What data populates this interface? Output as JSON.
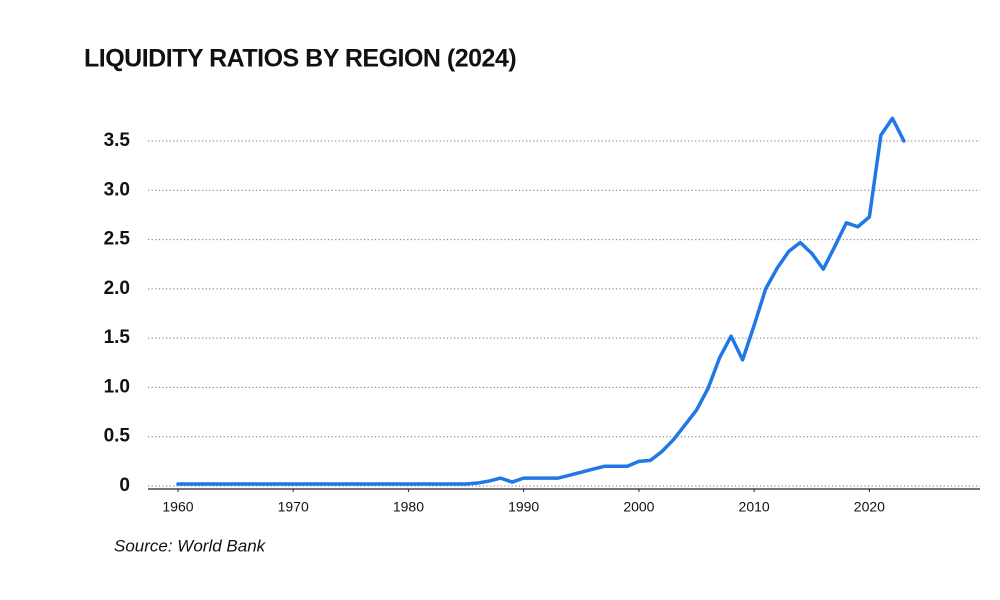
{
  "chart_data": {
    "type": "line",
    "title": "LIQUIDITY RATIOS BY REGION (2024)",
    "source": "Source: World Bank",
    "x": [
      1960,
      1961,
      1962,
      1963,
      1964,
      1965,
      1966,
      1967,
      1968,
      1969,
      1970,
      1971,
      1972,
      1973,
      1974,
      1975,
      1976,
      1977,
      1978,
      1979,
      1980,
      1981,
      1982,
      1983,
      1984,
      1985,
      1986,
      1987,
      1988,
      1989,
      1990,
      1991,
      1992,
      1993,
      1994,
      1995,
      1996,
      1997,
      1998,
      1999,
      2000,
      2001,
      2002,
      2003,
      2004,
      2005,
      2006,
      2007,
      2008,
      2009,
      2010,
      2011,
      2012,
      2013,
      2014,
      2015,
      2016,
      2017,
      2018,
      2019,
      2020,
      2021,
      2022,
      2023
    ],
    "series": [
      {
        "color": "#1f78e6",
        "values": [
          0.02,
          0.02,
          0.02,
          0.02,
          0.02,
          0.02,
          0.02,
          0.02,
          0.02,
          0.02,
          0.02,
          0.02,
          0.02,
          0.02,
          0.02,
          0.02,
          0.02,
          0.02,
          0.02,
          0.02,
          0.02,
          0.02,
          0.02,
          0.02,
          0.02,
          0.02,
          0.03,
          0.05,
          0.08,
          0.04,
          0.08,
          0.08,
          0.08,
          0.08,
          0.11,
          0.14,
          0.17,
          0.2,
          0.2,
          0.2,
          0.25,
          0.26,
          0.35,
          0.47,
          0.62,
          0.77,
          0.99,
          1.3,
          1.52,
          1.28,
          1.63,
          2.0,
          2.21,
          2.38,
          2.47,
          2.36,
          2.2,
          2.43,
          2.67,
          2.63,
          2.73,
          3.56,
          3.73,
          3.5
        ]
      }
    ],
    "xlim": [
      1957.4,
      2029.6
    ],
    "xticks": [
      1960,
      1970,
      1980,
      1990,
      2000,
      2010,
      2020
    ],
    "ylim": [
      0,
      3.8
    ],
    "yticks": [
      0,
      0.5,
      {
        "value": 1,
        "label": "1.0"
      },
      1.5,
      {
        "value": 2,
        "label": "2.0"
      },
      2.5,
      {
        "value": 3,
        "label": "3.0"
      },
      3.5
    ],
    "grid": true
  }
}
